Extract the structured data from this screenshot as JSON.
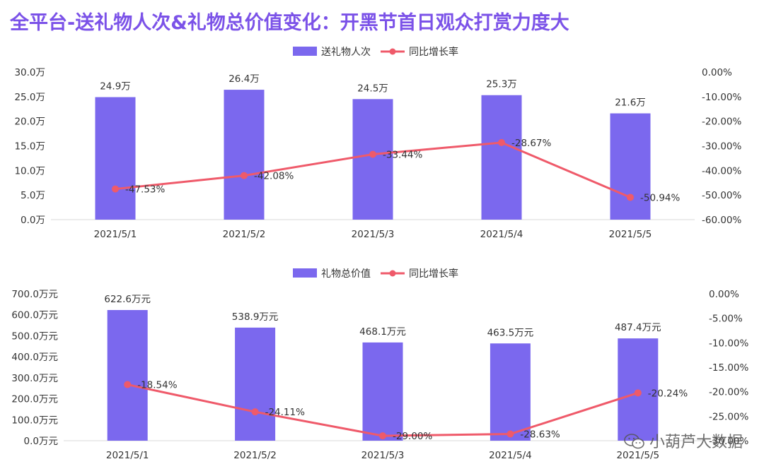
{
  "title": "全平台-送礼物人次&礼物总价值变化：开黑节首日观众打赏力度大",
  "watermark_text": "小葫芦大数据",
  "colors": {
    "bar": "#7b68ee",
    "line": "#ef5a6a",
    "title": "#7b52e8"
  },
  "chart_data": [
    {
      "type": "bar",
      "categories": [
        "2021/5/1",
        "2021/5/2",
        "2021/5/3",
        "2021/5/4",
        "2021/5/5"
      ],
      "series": [
        {
          "name": "送礼物人次",
          "type": "bar",
          "axis": "left",
          "values": [
            24.9,
            26.4,
            24.5,
            25.3,
            21.6
          ],
          "labels": [
            "24.9万",
            "26.4万",
            "24.5万",
            "25.3万",
            "21.6万"
          ]
        },
        {
          "name": "同比增长率",
          "type": "line",
          "axis": "right",
          "values": [
            -47.53,
            -42.08,
            -33.44,
            -28.67,
            -50.94
          ],
          "labels": [
            "-47.53%",
            "-42.08%",
            "-33.44%",
            "-28.67%",
            "-50.94%"
          ]
        }
      ],
      "left_axis": {
        "ylim": [
          0,
          30
        ],
        "ticks": [
          "0.0万",
          "5.0万",
          "10.0万",
          "15.0万",
          "20.0万",
          "25.0万",
          "30.0万"
        ]
      },
      "right_axis": {
        "ylim": [
          -60,
          0
        ],
        "ticks": [
          "-60.00%",
          "-50.00%",
          "-40.00%",
          "-30.00%",
          "-20.00%",
          "-10.00%",
          "0.00%"
        ]
      },
      "legend": "top-center",
      "grid": false
    },
    {
      "type": "bar",
      "categories": [
        "2021/5/1",
        "2021/5/2",
        "2021/5/3",
        "2021/5/4",
        "2021/5/5"
      ],
      "series": [
        {
          "name": "礼物总价值",
          "type": "bar",
          "axis": "left",
          "values": [
            622.6,
            538.9,
            468.1,
            463.5,
            487.4
          ],
          "labels": [
            "622.6万元",
            "538.9万元",
            "468.1万元",
            "463.5万元",
            "487.4万元"
          ]
        },
        {
          "name": "同比增长率",
          "type": "line",
          "axis": "right",
          "values": [
            -18.54,
            -24.11,
            -29.0,
            -28.63,
            -20.24
          ],
          "labels": [
            "-18.54%",
            "-24.11%",
            "-29.00%",
            "-28.63%",
            "-20.24%"
          ]
        }
      ],
      "left_axis": {
        "ylim": [
          0,
          700
        ],
        "ticks": [
          "0.0万元",
          "100.0万元",
          "200.0万元",
          "300.0万元",
          "400.0万元",
          "500.0万元",
          "600.0万元",
          "700.0万元"
        ]
      },
      "right_axis": {
        "ylim": [
          -30,
          0
        ],
        "ticks": [
          "-30.00%",
          "-25.00%",
          "-20.00%",
          "-15.00%",
          "-10.00%",
          "-5.00%",
          "0.00%"
        ]
      },
      "legend": "top-center",
      "grid": false
    }
  ]
}
